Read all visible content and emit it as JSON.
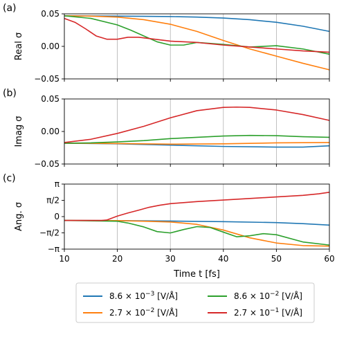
{
  "chart_data": [
    {
      "type": "line",
      "panel_label": "(a)",
      "ylabel": "Real σ",
      "xlim": [
        10,
        60
      ],
      "ylim": [
        -0.05,
        0.05
      ],
      "yticks": [
        -0.05,
        0.0,
        0.05
      ],
      "yticklabels": [
        "−0.05",
        "0.00",
        "0.05"
      ],
      "grid": "vertical",
      "series": [
        {
          "name": "8.6 × 10⁻³ [V/Å]",
          "color": "#1f77b4",
          "x": [
            10,
            15,
            20,
            25,
            30,
            35,
            40,
            45,
            50,
            55,
            60
          ],
          "y": [
            0.047,
            0.0468,
            0.0465,
            0.0462,
            0.0458,
            0.045,
            0.0435,
            0.041,
            0.037,
            0.031,
            0.023
          ]
        },
        {
          "name": "2.7 × 10⁻² [V/Å]",
          "color": "#ff7f0e",
          "x": [
            10,
            15,
            20,
            25,
            30,
            35,
            40,
            45,
            50,
            55,
            60
          ],
          "y": [
            0.047,
            0.0465,
            0.045,
            0.041,
            0.034,
            0.023,
            0.009,
            -0.004,
            -0.015,
            -0.026,
            -0.036
          ]
        },
        {
          "name": "8.6 × 10⁻² [V/Å]",
          "color": "#2ca02c",
          "x": [
            10,
            15,
            20,
            22.5,
            25,
            27.5,
            30,
            32.5,
            35,
            40,
            45,
            50,
            55,
            60
          ],
          "y": [
            0.047,
            0.043,
            0.033,
            0.025,
            0.016,
            0.007,
            0.002,
            0.002,
            0.006,
            0.003,
            -0.001,
            0.001,
            -0.004,
            -0.012
          ]
        },
        {
          "name": "2.7 × 10⁻¹ [V/Å]",
          "color": "#d62728",
          "x": [
            10,
            12,
            14,
            16,
            18,
            20,
            22,
            24,
            26,
            30,
            35,
            40,
            45,
            50,
            55,
            60
          ],
          "y": [
            0.043,
            0.037,
            0.027,
            0.016,
            0.011,
            0.011,
            0.014,
            0.014,
            0.012,
            0.008,
            0.006,
            0.002,
            -0.001,
            -0.004,
            -0.007,
            -0.009
          ]
        }
      ]
    },
    {
      "type": "line",
      "panel_label": "(b)",
      "ylabel": "Imag σ",
      "xlim": [
        10,
        60
      ],
      "ylim": [
        -0.05,
        0.05
      ],
      "yticks": [
        -0.05,
        0.0,
        0.05
      ],
      "yticklabels": [
        "−0.05",
        "0.00",
        "0.05"
      ],
      "grid": "vertical",
      "series": [
        {
          "name": "8.6 × 10⁻³ [V/Å]",
          "color": "#1f77b4",
          "x": [
            10,
            20,
            30,
            40,
            50,
            55,
            60
          ],
          "y": [
            -0.018,
            -0.019,
            -0.021,
            -0.023,
            -0.024,
            -0.024,
            -0.022
          ]
        },
        {
          "name": "2.7 × 10⁻² [V/Å]",
          "color": "#ff7f0e",
          "x": [
            10,
            20,
            30,
            40,
            50,
            60
          ],
          "y": [
            -0.018,
            -0.0185,
            -0.0195,
            -0.019,
            -0.0175,
            -0.017
          ]
        },
        {
          "name": "8.6 × 10⁻² [V/Å]",
          "color": "#2ca02c",
          "x": [
            10,
            15,
            20,
            25,
            30,
            35,
            40,
            45,
            50,
            55,
            60
          ],
          "y": [
            -0.018,
            -0.0175,
            -0.016,
            -0.014,
            -0.011,
            -0.009,
            -0.007,
            -0.006,
            -0.0065,
            -0.008,
            -0.009
          ]
        },
        {
          "name": "2.7 × 10⁻¹ [V/Å]",
          "color": "#d62728",
          "x": [
            10,
            15,
            20,
            25,
            30,
            35,
            40,
            42.5,
            45,
            50,
            55,
            60
          ],
          "y": [
            -0.017,
            -0.012,
            -0.003,
            0.008,
            0.021,
            0.032,
            0.037,
            0.0375,
            0.037,
            0.033,
            0.026,
            0.017
          ]
        }
      ]
    },
    {
      "type": "line",
      "panel_label": "(c)",
      "ylabel": "Ang. σ",
      "xlabel": "Time t [fs]",
      "xlim": [
        10,
        60
      ],
      "ylim": [
        -3.14159,
        3.14159
      ],
      "yticks": [
        -3.14159,
        -1.5708,
        0,
        1.5708,
        3.14159
      ],
      "yticklabels": [
        "−π",
        "−π/2",
        "0",
        "π/2",
        "π"
      ],
      "xticks": [
        10,
        20,
        30,
        40,
        50,
        60
      ],
      "xticklabels": [
        "10",
        "20",
        "30",
        "40",
        "50",
        "60"
      ],
      "grid": "vertical",
      "series": [
        {
          "name": "8.6 × 10⁻³ [V/Å]",
          "color": "#1f77b4",
          "x": [
            10,
            20,
            30,
            40,
            50,
            55,
            60
          ],
          "y": [
            -0.37,
            -0.39,
            -0.43,
            -0.49,
            -0.58,
            -0.68,
            -0.82
          ]
        },
        {
          "name": "2.7 × 10⁻² [V/Å]",
          "color": "#ff7f0e",
          "x": [
            10,
            20,
            25,
            30,
            35,
            40,
            45,
            50,
            55,
            60
          ],
          "y": [
            -0.37,
            -0.39,
            -0.45,
            -0.52,
            -0.75,
            -1.3,
            -2.05,
            -2.55,
            -2.8,
            -2.85
          ]
        },
        {
          "name": "8.6 × 10⁻² [V/Å]",
          "color": "#2ca02c",
          "x": [
            10,
            20,
            22,
            25,
            27.5,
            30,
            32.5,
            35,
            37.5,
            40,
            42.5,
            45,
            47.5,
            50,
            55,
            60
          ],
          "y": [
            -0.37,
            -0.45,
            -0.62,
            -1.0,
            -1.45,
            -1.58,
            -1.25,
            -0.97,
            -1.05,
            -1.5,
            -1.95,
            -1.85,
            -1.65,
            -1.75,
            -2.45,
            -2.75
          ]
        },
        {
          "name": "2.7 × 10⁻¹ [V/Å]",
          "color": "#d62728",
          "x": [
            10,
            17,
            18,
            20,
            22,
            24,
            26,
            28,
            30,
            35,
            40,
            45,
            50,
            55,
            58,
            60
          ],
          "y": [
            -0.37,
            -0.37,
            -0.33,
            0.05,
            0.35,
            0.62,
            0.9,
            1.1,
            1.25,
            1.45,
            1.6,
            1.75,
            1.9,
            2.05,
            2.2,
            2.35
          ]
        }
      ]
    }
  ],
  "legend": {
    "placement": "bottom-center",
    "entries": [
      {
        "label_mantissa": "8.6",
        "label_exp": "−3",
        "unit": "[V/Å]",
        "color": "#1f77b4"
      },
      {
        "label_mantissa": "8.6",
        "label_exp": "−2",
        "unit": "[V/Å]",
        "color": "#2ca02c"
      },
      {
        "label_mantissa": "2.7",
        "label_exp": "−2",
        "unit": "[V/Å]",
        "color": "#ff7f0e"
      },
      {
        "label_mantissa": "2.7",
        "label_exp": "−1",
        "unit": "[V/Å]",
        "color": "#d62728"
      }
    ]
  }
}
